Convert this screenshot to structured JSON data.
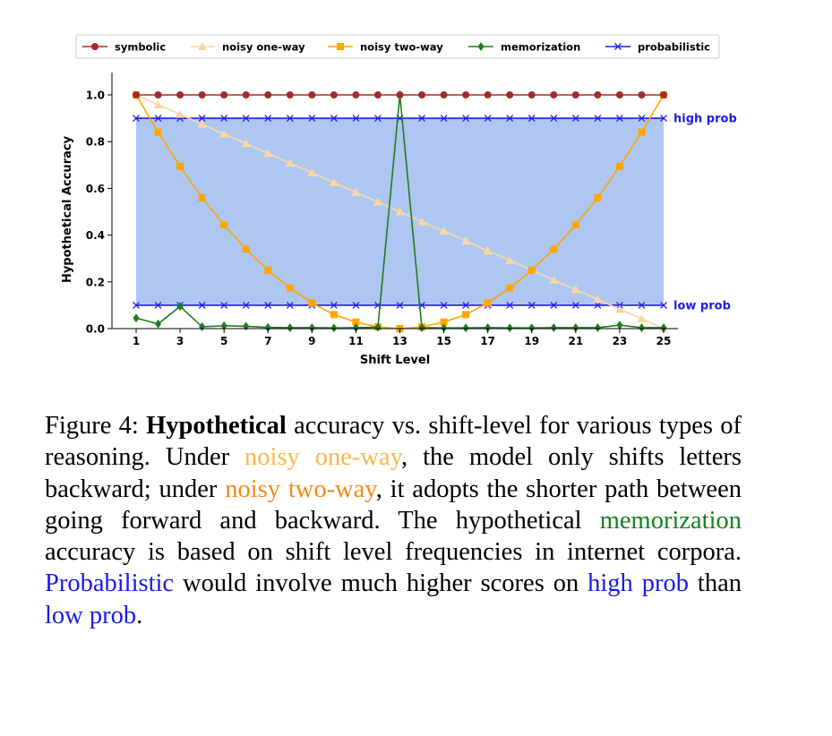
{
  "chart_data": {
    "type": "line",
    "xlabel": "Shift Level",
    "ylabel": "Hypothetical Accuracy",
    "xlim": [
      1,
      25
    ],
    "ylim": [
      0.0,
      1.0
    ],
    "x_ticks": [
      "1",
      "3",
      "5",
      "7",
      "9",
      "11",
      "13",
      "15",
      "17",
      "19",
      "21",
      "23",
      "25"
    ],
    "y_ticks": [
      "0.0",
      "0.2",
      "0.4",
      "0.6",
      "0.8",
      "1.0"
    ],
    "grid": false,
    "legend_position": "top",
    "x": [
      1,
      2,
      3,
      4,
      5,
      6,
      7,
      8,
      9,
      10,
      11,
      12,
      13,
      14,
      15,
      16,
      17,
      18,
      19,
      20,
      21,
      22,
      23,
      24,
      25
    ],
    "shaded_band": {
      "from": 0.1,
      "to": 0.9,
      "color": "#aec7f2"
    },
    "series": [
      {
        "name": "symbolic",
        "color": "#a52a2a",
        "marker": "circle",
        "values": [
          1,
          1,
          1,
          1,
          1,
          1,
          1,
          1,
          1,
          1,
          1,
          1,
          1,
          1,
          1,
          1,
          1,
          1,
          1,
          1,
          1,
          1,
          1,
          1,
          1
        ]
      },
      {
        "name": "noisy one-way",
        "color": "#fbd6a0",
        "marker": "triangle",
        "values": [
          1.0,
          0.958,
          0.917,
          0.875,
          0.833,
          0.792,
          0.75,
          0.708,
          0.667,
          0.625,
          0.583,
          0.542,
          0.5,
          0.458,
          0.417,
          0.375,
          0.333,
          0.292,
          0.25,
          0.208,
          0.167,
          0.125,
          0.083,
          0.042,
          0.0
        ]
      },
      {
        "name": "noisy two-way",
        "color": "#ffa500",
        "marker": "square",
        "values": [
          1.0,
          0.84,
          0.694,
          0.56,
          0.444,
          0.34,
          0.25,
          0.174,
          0.11,
          0.06,
          0.028,
          0.007,
          0.0,
          0.007,
          0.028,
          0.06,
          0.11,
          0.174,
          0.25,
          0.34,
          0.444,
          0.56,
          0.694,
          0.84,
          1.0
        ]
      },
      {
        "name": "memorization",
        "color": "#1f7d1f",
        "marker": "diamond",
        "values": [
          0.045,
          0.02,
          0.095,
          0.008,
          0.012,
          0.01,
          0.005,
          0.004,
          0.004,
          0.003,
          0.004,
          0.006,
          1.0,
          0.004,
          0.003,
          0.003,
          0.004,
          0.003,
          0.003,
          0.004,
          0.004,
          0.004,
          0.015,
          0.004,
          0.004
        ]
      },
      {
        "name": "probabilistic",
        "color": "#1f1fe0",
        "marker": "x",
        "lines": [
          {
            "label": "high prob",
            "y": 0.9
          },
          {
            "label": "low prob",
            "y": 0.1
          }
        ]
      }
    ]
  },
  "caption": {
    "figure_label": "Figure 4: ",
    "bold_word": "Hypothetical",
    "t1": " accuracy vs.  shift-level for various types of reasoning. Under ",
    "noisy_one_way": "noisy one-way",
    "t2": ", the model only shifts letters backward; under ",
    "noisy_two_way": "noisy two-way",
    "t3": ", it adopts the shorter path between going forward and backward. The hypothetical ",
    "memorization": "memorization",
    "t4": " accuracy is based on shift level frequencies in internet corpora. ",
    "probabilistic": "Probabilistic",
    "t5": " would involve much higher scores on ",
    "high_prob": "high prob",
    "t6": " than ",
    "low_prob": "low prob",
    "t7": "."
  }
}
